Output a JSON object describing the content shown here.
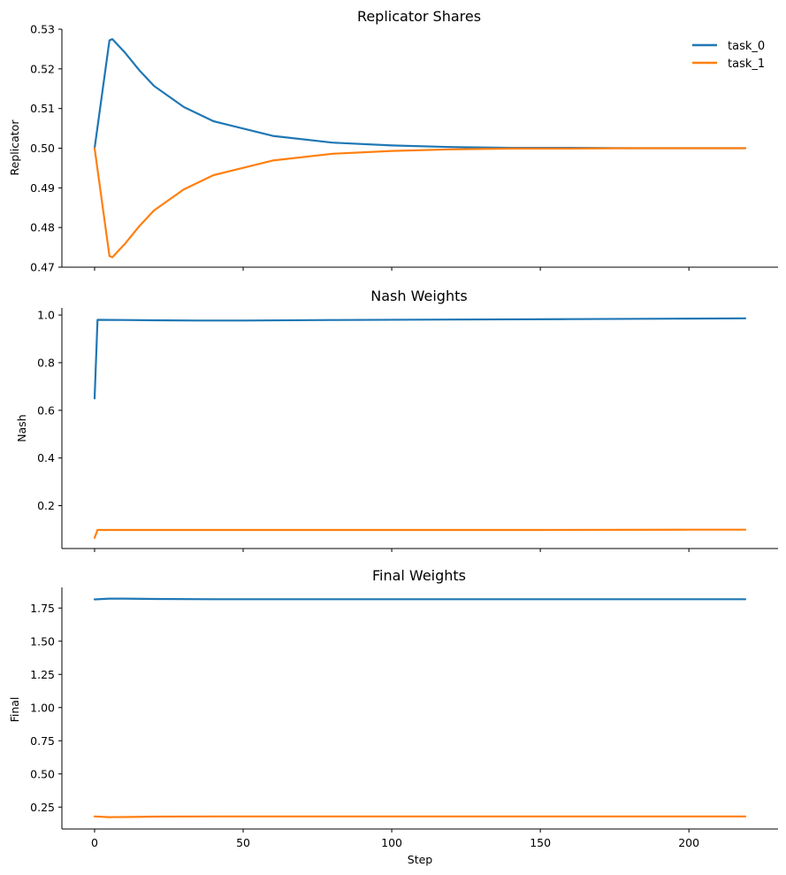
{
  "chart_data": [
    {
      "type": "line",
      "title": "Replicator Shares",
      "xlabel": "",
      "ylabel": "Replicator",
      "xlim": [
        -11,
        230
      ],
      "ylim": [
        0.47,
        0.53
      ],
      "xticks": [
        0,
        50,
        100,
        150,
        200
      ],
      "xtick_labels_visible": false,
      "yticks": [
        0.47,
        0.48,
        0.49,
        0.5,
        0.51,
        0.52,
        0.53
      ],
      "ytick_labels": [
        "0.47",
        "0.48",
        "0.49",
        "0.50",
        "0.51",
        "0.52",
        "0.53"
      ],
      "grid": false,
      "legend": "top-right",
      "series": [
        {
          "name": "task_0",
          "color": "#1f77b4",
          "x": [
            0,
            5,
            6,
            10,
            15,
            20,
            30,
            40,
            60,
            80,
            100,
            120,
            140,
            160,
            180,
            200,
            219
          ],
          "values": [
            0.5,
            0.5272,
            0.5275,
            0.5243,
            0.5197,
            0.5157,
            0.5104,
            0.5068,
            0.5031,
            0.5014,
            0.5007,
            0.5003,
            0.5001,
            0.5001,
            0.5,
            0.5,
            0.5
          ]
        },
        {
          "name": "task_1",
          "color": "#ff7f0e",
          "x": [
            0,
            5,
            6,
            10,
            15,
            20,
            30,
            40,
            60,
            80,
            100,
            120,
            140,
            160,
            180,
            200,
            219
          ],
          "values": [
            0.5,
            0.4728,
            0.4725,
            0.4757,
            0.4803,
            0.4843,
            0.4896,
            0.4932,
            0.4969,
            0.4986,
            0.4993,
            0.4997,
            0.4999,
            0.4999,
            0.5,
            0.5,
            0.5
          ]
        }
      ]
    },
    {
      "type": "line",
      "title": "Nash Weights",
      "xlabel": "",
      "ylabel": "Nash",
      "xlim": [
        -11,
        230
      ],
      "ylim": [
        0.02,
        1.03
      ],
      "xticks": [
        0,
        50,
        100,
        150,
        200
      ],
      "xtick_labels_visible": false,
      "yticks": [
        0.2,
        0.4,
        0.6,
        0.8,
        1.0
      ],
      "ytick_labels": [
        "0.2",
        "0.4",
        "0.6",
        "0.8",
        "1.0"
      ],
      "grid": false,
      "series": [
        {
          "name": "task_0",
          "color": "#1f77b4",
          "x": [
            0,
            1,
            10,
            20,
            35,
            50,
            80,
            120,
            160,
            200,
            219
          ],
          "values": [
            0.65,
            0.98,
            0.979,
            0.978,
            0.977,
            0.977,
            0.979,
            0.981,
            0.983,
            0.985,
            0.986
          ]
        },
        {
          "name": "task_1",
          "color": "#ff7f0e",
          "x": [
            0,
            1,
            10,
            50,
            100,
            150,
            200,
            219
          ],
          "values": [
            0.065,
            0.098,
            0.098,
            0.098,
            0.098,
            0.098,
            0.099,
            0.099
          ]
        }
      ]
    },
    {
      "type": "line",
      "title": "Final Weights",
      "xlabel": "Step",
      "ylabel": "Final",
      "xlim": [
        -11,
        230
      ],
      "ylim": [
        0.085,
        1.905
      ],
      "xticks": [
        0,
        50,
        100,
        150,
        200
      ],
      "xtick_labels": [
        "0",
        "50",
        "100",
        "150",
        "200"
      ],
      "xtick_labels_visible": true,
      "yticks": [
        0.25,
        0.5,
        0.75,
        1.0,
        1.25,
        1.5,
        1.75
      ],
      "ytick_labels": [
        "0.25",
        "0.50",
        "0.75",
        "1.00",
        "1.25",
        "1.50",
        "1.75"
      ],
      "grid": false,
      "series": [
        {
          "name": "task_0",
          "color": "#1f77b4",
          "x": [
            0,
            5,
            10,
            20,
            40,
            80,
            120,
            160,
            200,
            219
          ],
          "values": [
            1.815,
            1.821,
            1.821,
            1.818,
            1.816,
            1.816,
            1.816,
            1.816,
            1.816,
            1.816
          ]
        },
        {
          "name": "task_1",
          "color": "#ff7f0e",
          "x": [
            0,
            5,
            10,
            20,
            40,
            80,
            120,
            160,
            200,
            219
          ],
          "values": [
            0.18,
            0.174,
            0.175,
            0.178,
            0.18,
            0.18,
            0.18,
            0.18,
            0.18,
            0.18
          ]
        }
      ]
    }
  ]
}
